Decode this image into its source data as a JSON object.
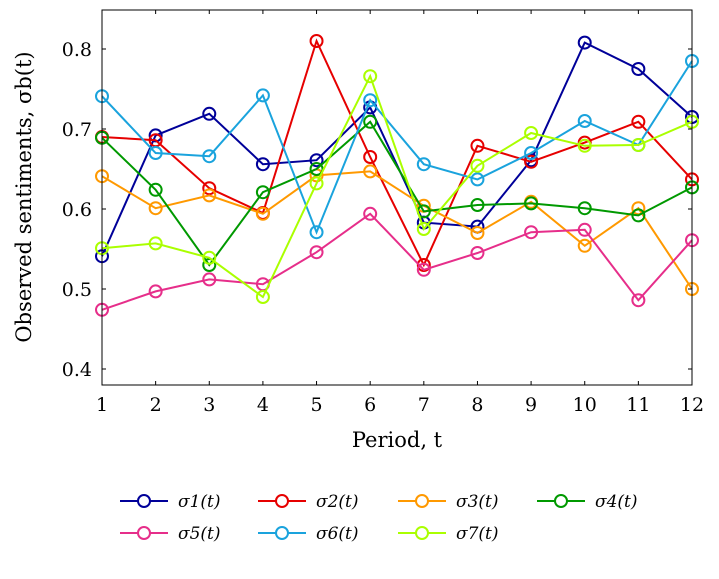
{
  "chart_data": {
    "type": "line",
    "xlabel": "Period, t",
    "ylabel": "Observed sentiments, σb(t)",
    "xlim": [
      1,
      12
    ],
    "ylim": [
      0.38,
      0.85
    ],
    "x": [
      1,
      2,
      3,
      4,
      5,
      6,
      7,
      8,
      9,
      10,
      11,
      12
    ],
    "x_ticks": [
      "1",
      "2",
      "3",
      "4",
      "5",
      "6",
      "7",
      "8",
      "9",
      "10",
      "11",
      "12"
    ],
    "y_ticks": [
      0.4,
      0.5,
      0.6,
      0.7,
      0.8
    ],
    "y_tick_labels": [
      "0.4",
      "0.5",
      "0.6",
      "0.7",
      "0.8"
    ],
    "grid": false,
    "legend_position": "bottom",
    "marker": "open-circle",
    "series": [
      {
        "name": "σ1(t)",
        "color": "#000099",
        "values": [
          0.541,
          0.692,
          0.719,
          0.656,
          0.661,
          0.727,
          0.583,
          0.578,
          0.661,
          0.808,
          0.775,
          0.715
        ]
      },
      {
        "name": "σ2(t)",
        "color": "#e60000",
        "values": [
          0.69,
          0.686,
          0.626,
          0.595,
          0.81,
          0.665,
          0.53,
          0.679,
          0.659,
          0.683,
          0.709,
          0.637
        ]
      },
      {
        "name": "σ3(t)",
        "color": "#ff9900",
        "values": [
          0.641,
          0.601,
          0.617,
          0.594,
          0.642,
          0.647,
          0.604,
          0.57,
          0.609,
          0.554,
          0.601,
          0.5
        ]
      },
      {
        "name": "σ4(t)",
        "color": "#009900",
        "values": [
          0.689,
          0.624,
          0.53,
          0.621,
          0.65,
          0.709,
          0.597,
          0.605,
          0.607,
          0.601,
          0.592,
          0.627
        ]
      },
      {
        "name": "σ5(t)",
        "color": "#e62e8a",
        "values": [
          0.474,
          0.497,
          0.512,
          0.506,
          0.546,
          0.594,
          0.524,
          0.545,
          0.571,
          0.574,
          0.486,
          0.561
        ]
      },
      {
        "name": "σ6(t)",
        "color": "#1aa3dd",
        "values": [
          0.741,
          0.67,
          0.666,
          0.742,
          0.571,
          0.736,
          0.656,
          0.637,
          0.67,
          0.71,
          0.68,
          0.785
        ]
      },
      {
        "name": "σ7(t)",
        "color": "#aaff00",
        "values": [
          0.551,
          0.557,
          0.539,
          0.49,
          0.632,
          0.766,
          0.575,
          0.654,
          0.695,
          0.679,
          0.68,
          0.709
        ]
      }
    ]
  }
}
